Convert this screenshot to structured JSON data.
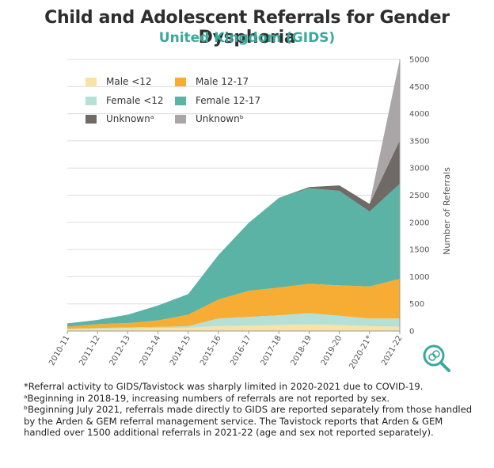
{
  "title": "Child and Adolescent Referrals for Gender Dysphoria",
  "subtitle": "United Kingdom (GIDS)",
  "footnotes": [
    "*Referral activity to GIDS/Tavistock was sharply limited in 2020-2021 due to COVID-19.",
    "ᵃBeginning in 2018-19, increasing numbers of referrals are not reported by sex.",
    "ᵇBeginning July 2021, referrals made directly to GIDS are reported separately from those handled by the Arden & GEM referral management service. The Tavistock reports that Arden & GEM handled over 1500 additional referrals in 2021-22 (age and sex not reported separately)."
  ],
  "colors": {
    "male_lt12": "#f8e3a4",
    "male_12_17": "#f7ad33",
    "female_lt12": "#b5e0d6",
    "female_12_17": "#5bb3a5",
    "unknown_a": "#6f6a66",
    "unknown_b": "#aaa5a6",
    "grid": "#dcdcdc",
    "axis": "#9a9a9a",
    "logo": "#3aa89a"
  },
  "legend": [
    {
      "label": "Male <12",
      "color_key": "male_lt12"
    },
    {
      "label": "Male 12-17",
      "color_key": "male_12_17"
    },
    {
      "label": "Female <12",
      "color_key": "female_lt12"
    },
    {
      "label": "Female 12-17",
      "color_key": "female_12_17"
    },
    {
      "label": "Unknownᵃ",
      "color_key": "unknown_a"
    },
    {
      "label": "Unknownᵇ",
      "color_key": "unknown_b"
    }
  ],
  "chart_data": {
    "type": "area",
    "stacked": true,
    "categories": [
      "2010-11",
      "2011-12",
      "2012-13",
      "2013-14",
      "2014-15",
      "2015-16",
      "2016-17",
      "2017-18",
      "2018-19",
      "2019-20",
      "2020-21*",
      "2021-22"
    ],
    "ylabel": "Number of Referrals",
    "ylim": [
      0,
      5000
    ],
    "yticks": [
      0,
      500,
      1000,
      1500,
      2000,
      2500,
      3000,
      3500,
      4000,
      4500,
      5000
    ],
    "y_axis_position": "right",
    "grid": true,
    "legend_position": "top-left",
    "series": [
      {
        "name": "Male <12",
        "color_key": "male_lt12",
        "values": [
          30,
          40,
          50,
          55,
          60,
          90,
          100,
          110,
          120,
          110,
          90,
          80
        ]
      },
      {
        "name": "Female <12",
        "color_key": "female_lt12",
        "values": [
          10,
          15,
          15,
          20,
          30,
          140,
          160,
          180,
          210,
          170,
          140,
          150
        ]
      },
      {
        "name": "Male 12-17",
        "color_key": "male_12_17",
        "values": [
          40,
          70,
          80,
          120,
          210,
          350,
          480,
          510,
          540,
          560,
          590,
          730
        ]
      },
      {
        "name": "Female 12-17",
        "color_key": "female_12_17",
        "values": [
          60,
          80,
          155,
          275,
          380,
          820,
          1250,
          1650,
          1760,
          1740,
          1380,
          1750
        ]
      },
      {
        "name": "Unknownᵃ",
        "color_key": "unknown_a",
        "values": [
          0,
          0,
          0,
          0,
          0,
          0,
          0,
          0,
          20,
          100,
          140,
          800
        ]
      },
      {
        "name": "Unknownᵇ",
        "color_key": "unknown_b",
        "values": [
          0,
          0,
          0,
          0,
          0,
          0,
          0,
          0,
          0,
          0,
          0,
          1490
        ]
      }
    ]
  }
}
